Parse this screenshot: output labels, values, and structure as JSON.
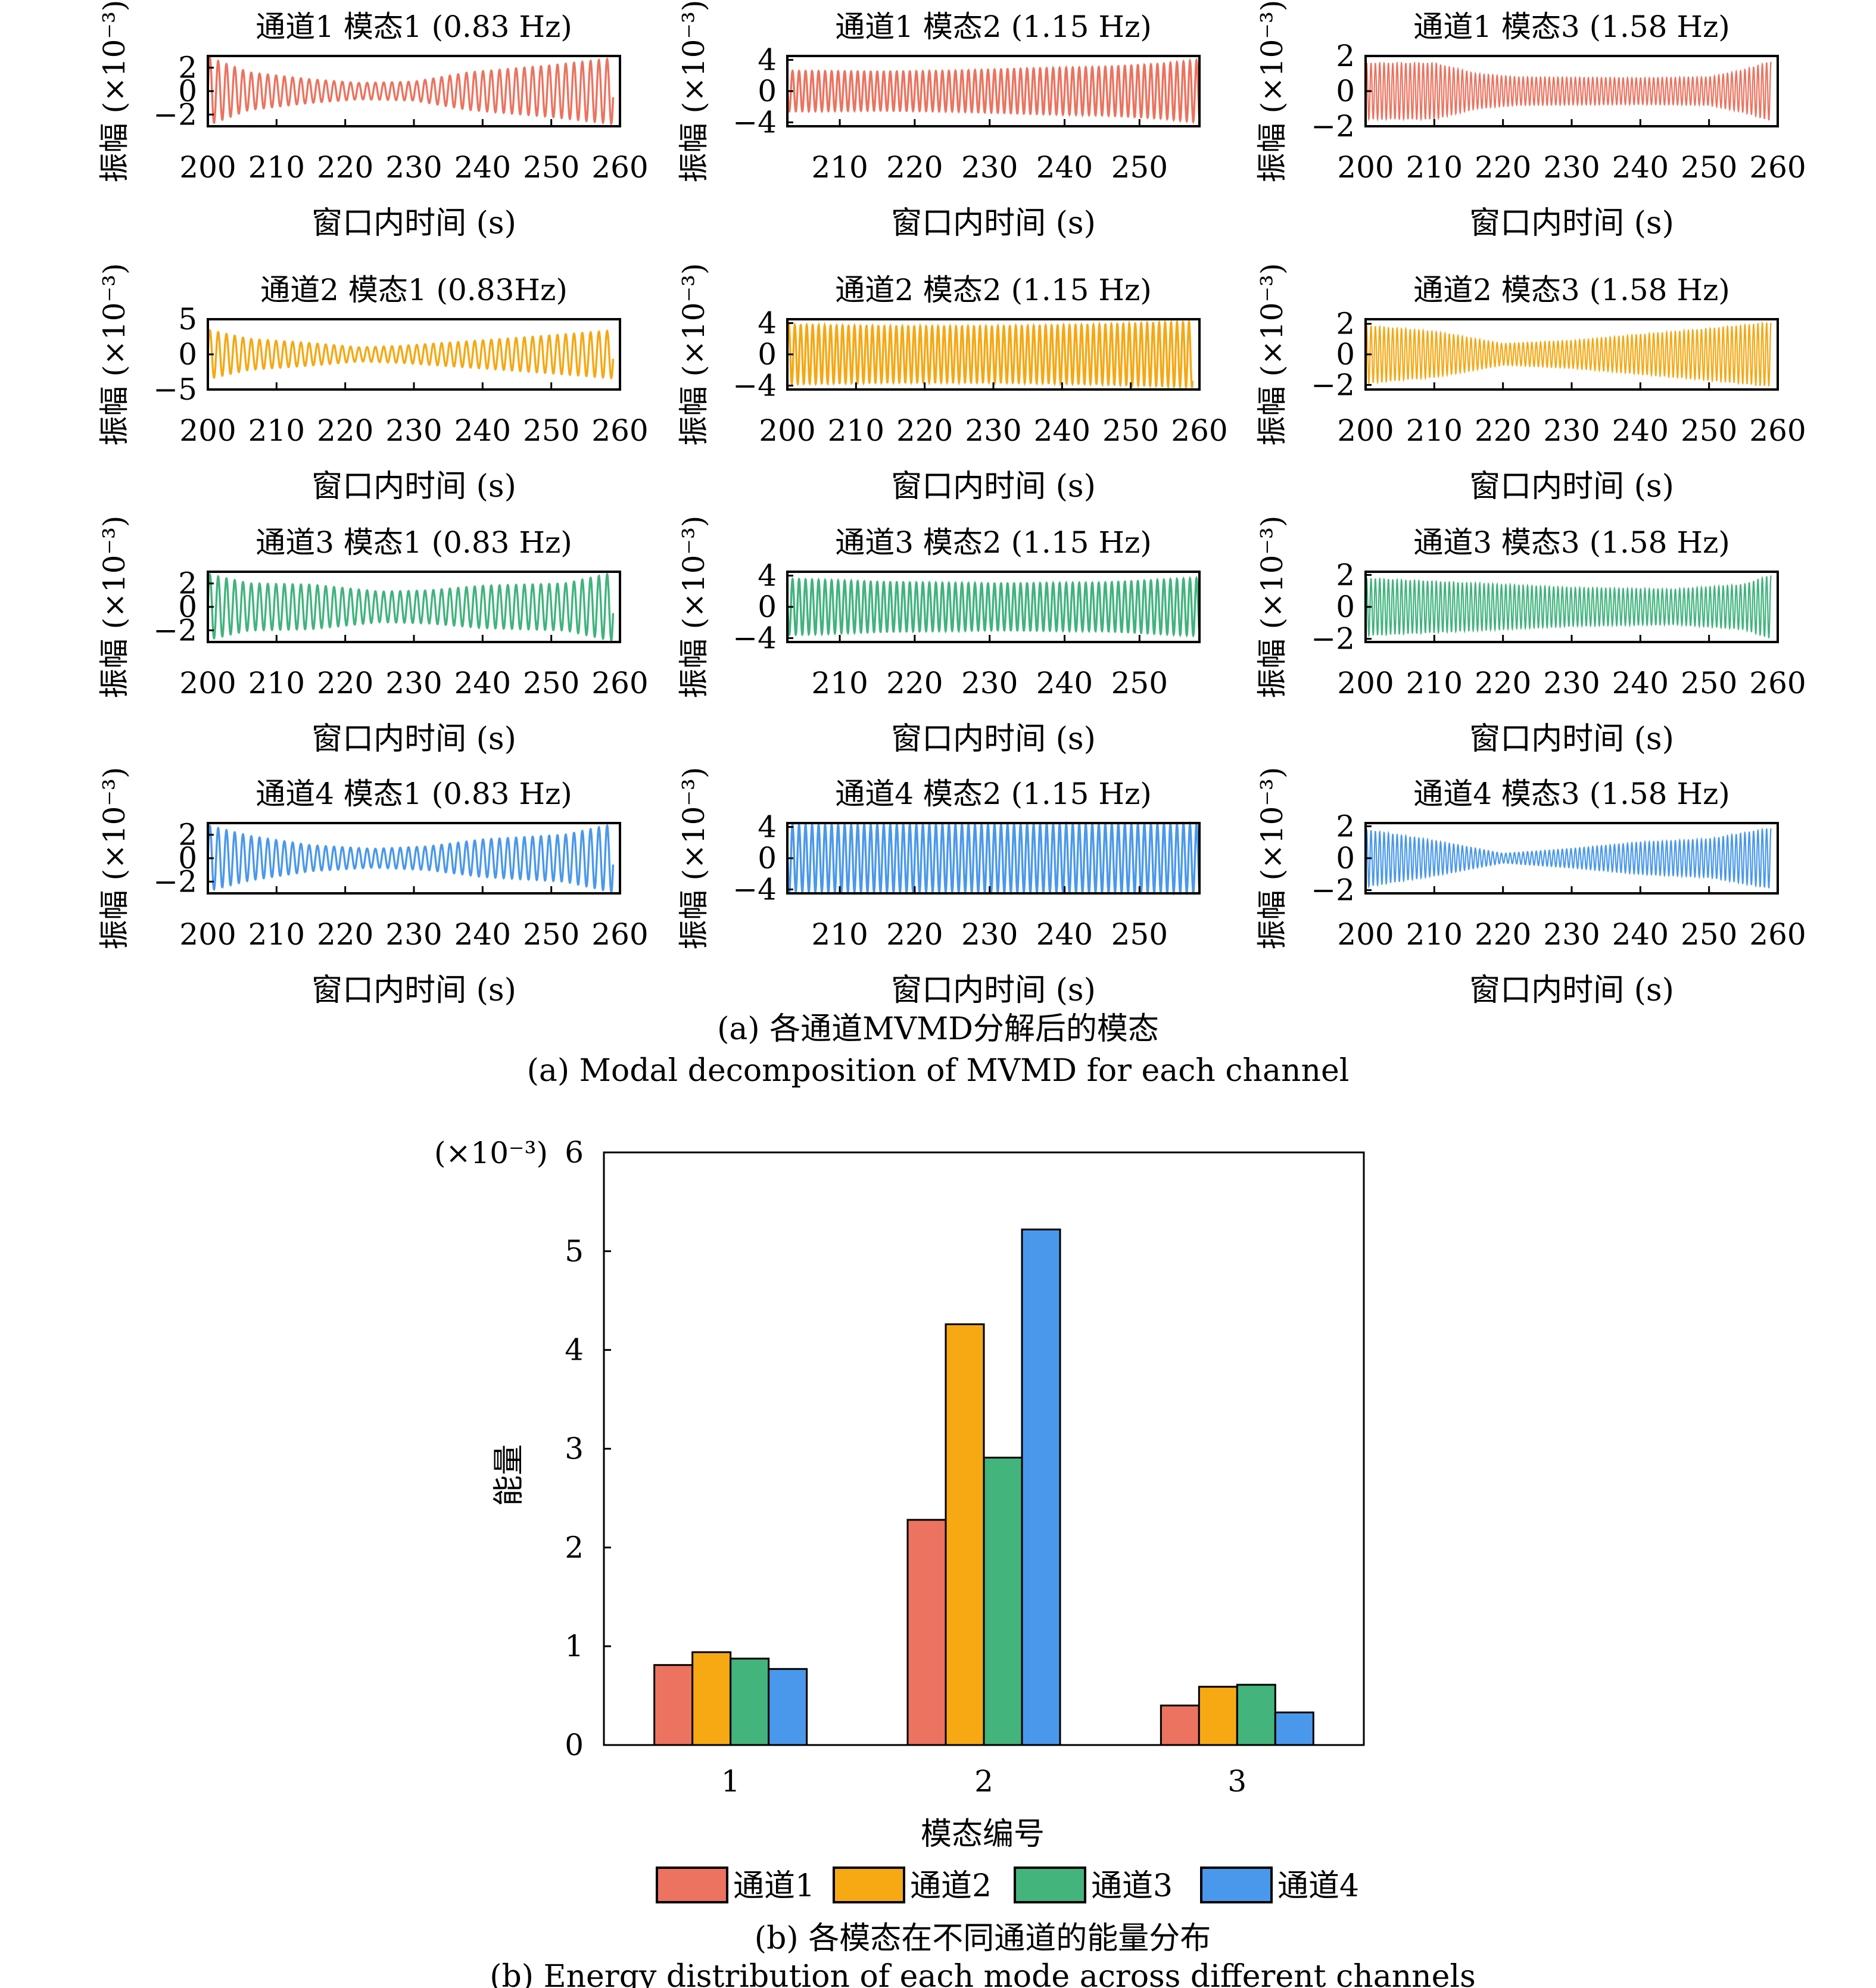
{
  "chart_data": [
    {
      "type": "line",
      "group": "a",
      "caption_zh": "(a) 各通道MVMD分解后的模态",
      "caption_en": "(a) Modal decomposition of MVMD for each channel",
      "ylabel": "振幅 (×10⁻³)",
      "xlabel": "窗口内时间 (s)",
      "panels": [
        {
          "title": "通道1 模态1 (0.83 Hz)",
          "channel": 1,
          "mode": 1,
          "freq_hz": 0.83,
          "color": "#EB735F",
          "xlim": [
            200,
            260
          ],
          "xticks": [
            "200",
            "210",
            "220",
            "230",
            "240",
            "250",
            "260"
          ],
          "ylim": [
            -3,
            3
          ],
          "yticks": [
            "2",
            "0",
            "−2"
          ],
          "yvals": [
            2,
            0,
            -2
          ],
          "envelope": [
            [
              200,
              2.9
            ],
            [
              206,
              1.6
            ],
            [
              215,
              1.0
            ],
            [
              222,
              0.7
            ],
            [
              230,
              0.8
            ],
            [
              238,
              1.6
            ],
            [
              250,
              2.2
            ],
            [
              259,
              2.8
            ]
          ]
        },
        {
          "title": "通道1 模态2 (1.15 Hz)",
          "channel": 1,
          "mode": 2,
          "freq_hz": 1.15,
          "color": "#EB735F",
          "xlim": [
            203,
            258
          ],
          "xticks": [
            "210",
            "220",
            "230",
            "240",
            "250"
          ],
          "ylim": [
            -4.5,
            4.5
          ],
          "yticks": [
            "4",
            "0",
            "−4"
          ],
          "yvals": [
            4,
            0,
            -4
          ],
          "envelope": [
            [
              203,
              2.6
            ],
            [
              215,
              2.5
            ],
            [
              225,
              2.6
            ],
            [
              235,
              2.9
            ],
            [
              245,
              3.1
            ],
            [
              253,
              3.5
            ],
            [
              258,
              4.0
            ]
          ]
        },
        {
          "title": "通道1 模态3 (1.58 Hz)",
          "channel": 1,
          "mode": 3,
          "freq_hz": 1.58,
          "color": "#EB735F",
          "xlim": [
            200,
            260
          ],
          "xticks": [
            "200",
            "210",
            "220",
            "230",
            "240",
            "250",
            "260"
          ],
          "ylim": [
            -2,
            2
          ],
          "yticks": [
            "2",
            "0",
            "−2"
          ],
          "yvals": [
            2,
            0,
            -2
          ],
          "envelope": [
            [
              200,
              1.6
            ],
            [
              210,
              1.6
            ],
            [
              216,
              1.0
            ],
            [
              222,
              0.8
            ],
            [
              240,
              0.75
            ],
            [
              250,
              0.8
            ],
            [
              255,
              1.2
            ],
            [
              259,
              1.7
            ]
          ]
        },
        {
          "title": "通道2 模态1 (0.83Hz)",
          "channel": 2,
          "mode": 1,
          "freq_hz": 0.83,
          "color": "#F5A813",
          "xlim": [
            200,
            260
          ],
          "xticks": [
            "200",
            "210",
            "220",
            "230",
            "240",
            "250",
            "260"
          ],
          "ylim": [
            -5,
            5
          ],
          "yticks": [
            "5",
            "0",
            "−5"
          ],
          "yvals": [
            5,
            0,
            -5
          ],
          "envelope": [
            [
              200,
              3.5
            ],
            [
              206,
              2.2
            ],
            [
              215,
              1.6
            ],
            [
              222,
              1.0
            ],
            [
              228,
              1.2
            ],
            [
              240,
              2.0
            ],
            [
              250,
              2.7
            ],
            [
              259,
              3.4
            ]
          ]
        },
        {
          "title": "通道2 模态2 (1.15 Hz)",
          "channel": 2,
          "mode": 2,
          "freq_hz": 1.15,
          "color": "#F5A813",
          "xlim": [
            200,
            260
          ],
          "xticks": [
            "200",
            "210",
            "220",
            "230",
            "240",
            "250",
            "260"
          ],
          "ylim": [
            -4.5,
            4.5
          ],
          "yticks": [
            "4",
            "0",
            "−4"
          ],
          "yvals": [
            4,
            0,
            -4
          ],
          "envelope": [
            [
              200,
              3.8
            ],
            [
              215,
              3.6
            ],
            [
              230,
              3.6
            ],
            [
              245,
              3.8
            ],
            [
              259,
              4.2
            ]
          ]
        },
        {
          "title": "通道2 模态3 (1.58 Hz)",
          "channel": 2,
          "mode": 3,
          "freq_hz": 1.58,
          "color": "#F5A813",
          "xlim": [
            200,
            260
          ],
          "xticks": [
            "200",
            "210",
            "220",
            "230",
            "240",
            "250",
            "260"
          ],
          "ylim": [
            -2.3,
            2.3
          ],
          "yticks": [
            "2",
            "0",
            "−2"
          ],
          "yvals": [
            2,
            0,
            -2
          ],
          "envelope": [
            [
              200,
              1.9
            ],
            [
              210,
              1.5
            ],
            [
              220,
              0.7
            ],
            [
              230,
              0.9
            ],
            [
              240,
              1.3
            ],
            [
              250,
              1.7
            ],
            [
              259,
              2.1
            ]
          ]
        },
        {
          "title": "通道3 模态1 (0.83 Hz)",
          "channel": 3,
          "mode": 1,
          "freq_hz": 0.83,
          "color": "#41B37D",
          "xlim": [
            200,
            260
          ],
          "xticks": [
            "200",
            "210",
            "220",
            "230",
            "240",
            "250",
            "260"
          ],
          "ylim": [
            -3,
            3
          ],
          "yticks": [
            "2",
            "0",
            "−2"
          ],
          "yvals": [
            2,
            0,
            -2
          ],
          "envelope": [
            [
              200,
              2.8
            ],
            [
              206,
              2.0
            ],
            [
              215,
              1.9
            ],
            [
              225,
              1.3
            ],
            [
              232,
              1.4
            ],
            [
              240,
              1.8
            ],
            [
              252,
              2.0
            ],
            [
              259,
              2.9
            ]
          ]
        },
        {
          "title": "通道3 模态2 (1.15 Hz)",
          "channel": 3,
          "mode": 2,
          "freq_hz": 1.15,
          "color": "#41B37D",
          "xlim": [
            203,
            258
          ],
          "xticks": [
            "210",
            "220",
            "230",
            "240",
            "250"
          ],
          "ylim": [
            -4.5,
            4.5
          ],
          "yticks": [
            "4",
            "0",
            "−4"
          ],
          "yvals": [
            4,
            0,
            -4
          ],
          "envelope": [
            [
              203,
              3.6
            ],
            [
              215,
              3.2
            ],
            [
              230,
              3.0
            ],
            [
              245,
              3.1
            ],
            [
              258,
              3.7
            ]
          ]
        },
        {
          "title": "通道3 模态3 (1.58 Hz)",
          "channel": 3,
          "mode": 3,
          "freq_hz": 1.58,
          "color": "#41B37D",
          "xlim": [
            200,
            260
          ],
          "xticks": [
            "200",
            "210",
            "220",
            "230",
            "240",
            "250",
            "260"
          ],
          "ylim": [
            -2.2,
            2.2
          ],
          "yticks": [
            "2",
            "0",
            "−2"
          ],
          "yvals": [
            2,
            0,
            -2
          ],
          "envelope": [
            [
              200,
              1.8
            ],
            [
              215,
              1.5
            ],
            [
              230,
              1.2
            ],
            [
              245,
              1.1
            ],
            [
              255,
              1.4
            ],
            [
              259,
              2.0
            ]
          ]
        },
        {
          "title": "通道4 模态1 (0.83 Hz)",
          "channel": 4,
          "mode": 1,
          "freq_hz": 0.83,
          "color": "#4A98EA",
          "xlim": [
            200,
            260
          ],
          "xticks": [
            "200",
            "210",
            "220",
            "230",
            "240",
            "250",
            "260"
          ],
          "ylim": [
            -3,
            3
          ],
          "yticks": [
            "2",
            "0",
            "−2"
          ],
          "yvals": [
            2,
            0,
            -2
          ],
          "envelope": [
            [
              200,
              2.8
            ],
            [
              206,
              1.9
            ],
            [
              215,
              1.1
            ],
            [
              224,
              0.8
            ],
            [
              232,
              1.0
            ],
            [
              240,
              1.6
            ],
            [
              252,
              2.0
            ],
            [
              259,
              2.9
            ]
          ]
        },
        {
          "title": "通道4 模态2 (1.15 Hz)",
          "channel": 4,
          "mode": 2,
          "freq_hz": 1.15,
          "color": "#4A98EA",
          "xlim": [
            203,
            258
          ],
          "xticks": [
            "210",
            "220",
            "230",
            "240",
            "250"
          ],
          "ylim": [
            -4.5,
            4.5
          ],
          "yticks": [
            "4",
            "0",
            "−4"
          ],
          "yvals": [
            4,
            0,
            -4
          ],
          "envelope": [
            [
              203,
              4.3
            ],
            [
              230,
              4.3
            ],
            [
              258,
              4.4
            ]
          ]
        },
        {
          "title": "通道4 模态3 (1.58 Hz)",
          "channel": 4,
          "mode": 3,
          "freq_hz": 1.58,
          "color": "#4A98EA",
          "xlim": [
            200,
            260
          ],
          "xticks": [
            "200",
            "210",
            "220",
            "230",
            "240",
            "250",
            "260"
          ],
          "ylim": [
            -2.2,
            2.2
          ],
          "yticks": [
            "2",
            "0",
            "−2"
          ],
          "yvals": [
            2,
            0,
            -2
          ],
          "envelope": [
            [
              200,
              1.8
            ],
            [
              210,
              1.1
            ],
            [
              220,
              0.3
            ],
            [
              230,
              0.6
            ],
            [
              240,
              1.0
            ],
            [
              250,
              1.2
            ],
            [
              259,
              1.9
            ]
          ]
        }
      ]
    },
    {
      "type": "bar",
      "group": "b",
      "caption_zh": "(b) 各模态在不同通道的能量分布",
      "caption_en": "(b) Energy distribution of each mode across different channels",
      "xlabel": "模态编号",
      "ylabel": "能量",
      "yscale_label": "(×10⁻³)",
      "categories": [
        "1",
        "2",
        "3"
      ],
      "ylim": [
        0,
        6
      ],
      "yticks": [
        "0",
        "1",
        "2",
        "3",
        "4",
        "5",
        "6"
      ],
      "legend_position": "bottom",
      "series": [
        {
          "name": "通道1",
          "color": "#EC735F",
          "values": [
            0.81,
            2.28,
            0.4
          ]
        },
        {
          "name": "通道2",
          "color": "#F6A913",
          "values": [
            0.94,
            4.26,
            0.59
          ]
        },
        {
          "name": "通道3",
          "color": "#42B47C",
          "values": [
            0.875,
            2.91,
            0.61
          ]
        },
        {
          "name": "通道4",
          "color": "#4A98EB",
          "values": [
            0.77,
            5.22,
            0.33
          ]
        }
      ]
    }
  ]
}
